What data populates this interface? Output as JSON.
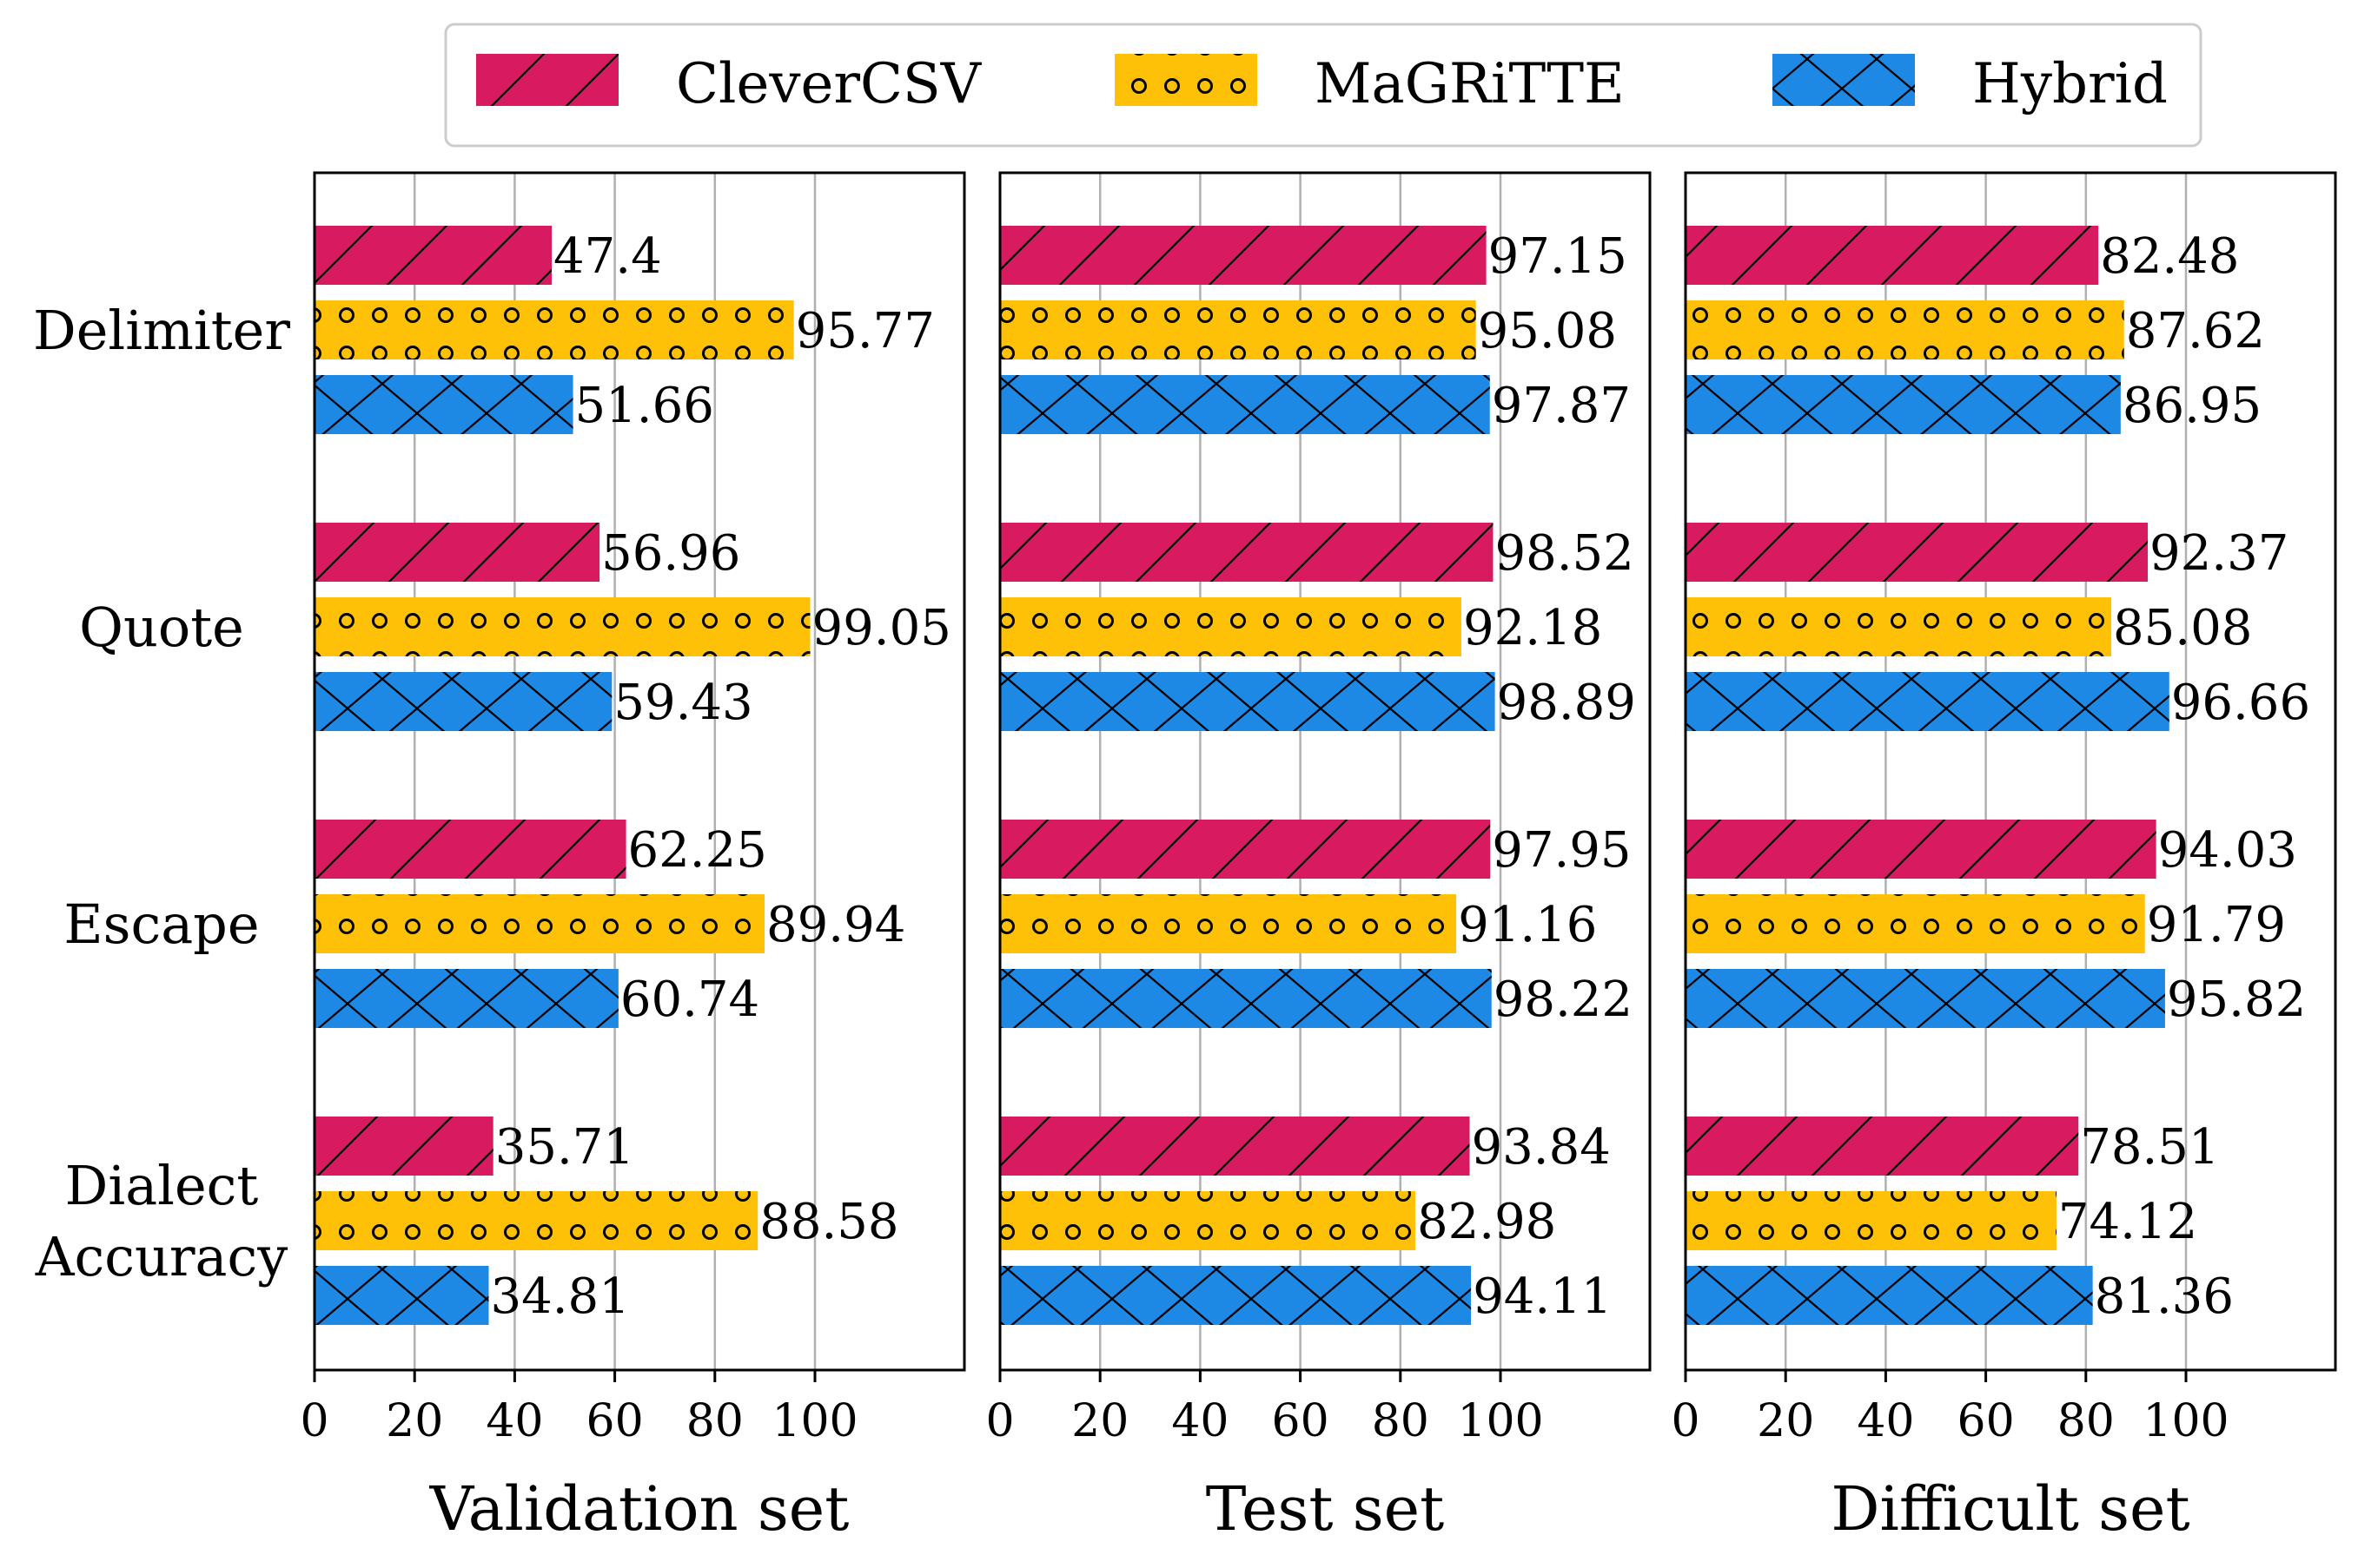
{
  "chart_data": {
    "type": "bar",
    "orientation": "horizontal",
    "categories": [
      "Delimiter",
      "Quote",
      "Escape",
      "Dialect Accuracy"
    ],
    "category_lines": [
      [
        "Delimiter"
      ],
      [
        "Quote"
      ],
      [
        "Escape"
      ],
      [
        "Dialect",
        "Accuracy"
      ]
    ],
    "legend": {
      "placement": "top",
      "entries": [
        {
          "name": "CleverCSV",
          "color": "#D81B60",
          "pattern": "diagonal"
        },
        {
          "name": "MaGRiTTE",
          "color": "#FFC107",
          "pattern": "circles"
        },
        {
          "name": "Hybrid",
          "color": "#1E88E5",
          "pattern": "crosshatch"
        }
      ]
    },
    "xlim": [
      0,
      130
    ],
    "xticks": [
      0,
      20,
      40,
      60,
      80,
      100
    ],
    "grid": "x",
    "panels": [
      {
        "xlabel": "Validation set",
        "series": [
          {
            "name": "CleverCSV",
            "values": [
              47.4,
              56.96,
              62.25,
              35.71
            ],
            "labels": [
              "47.4",
              "56.96",
              "62.25",
              "35.71"
            ]
          },
          {
            "name": "MaGRiTTE",
            "values": [
              95.77,
              99.05,
              89.94,
              88.58
            ],
            "labels": [
              "95.77",
              "99.05",
              "89.94",
              "88.58"
            ]
          },
          {
            "name": "Hybrid",
            "values": [
              51.66,
              59.43,
              60.74,
              34.81
            ],
            "labels": [
              "51.66",
              "59.43",
              "60.74",
              "34.81"
            ]
          }
        ]
      },
      {
        "xlabel": "Test set",
        "series": [
          {
            "name": "CleverCSV",
            "values": [
              97.15,
              98.52,
              97.95,
              93.84
            ],
            "labels": [
              "97.15",
              "98.52",
              "97.95",
              "93.84"
            ]
          },
          {
            "name": "MaGRiTTE",
            "values": [
              95.08,
              92.18,
              91.16,
              82.98
            ],
            "labels": [
              "95.08",
              "92.18",
              "91.16",
              "82.98"
            ]
          },
          {
            "name": "Hybrid",
            "values": [
              97.87,
              98.89,
              98.22,
              94.11
            ],
            "labels": [
              "97.87",
              "98.89",
              "98.22",
              "94.11"
            ]
          }
        ]
      },
      {
        "xlabel": "Difficult set",
        "series": [
          {
            "name": "CleverCSV",
            "values": [
              82.48,
              92.37,
              94.03,
              78.51
            ],
            "labels": [
              "82.48",
              "92.37",
              "94.03",
              "78.51"
            ]
          },
          {
            "name": "MaGRiTTE",
            "values": [
              87.62,
              85.08,
              91.79,
              74.12
            ],
            "labels": [
              "87.62",
              "85.08",
              "91.79",
              "74.12"
            ]
          },
          {
            "name": "Hybrid",
            "values": [
              86.95,
              96.66,
              95.82,
              81.36
            ],
            "labels": [
              "86.95",
              "96.66",
              "95.82",
              "81.36"
            ]
          }
        ]
      }
    ]
  }
}
